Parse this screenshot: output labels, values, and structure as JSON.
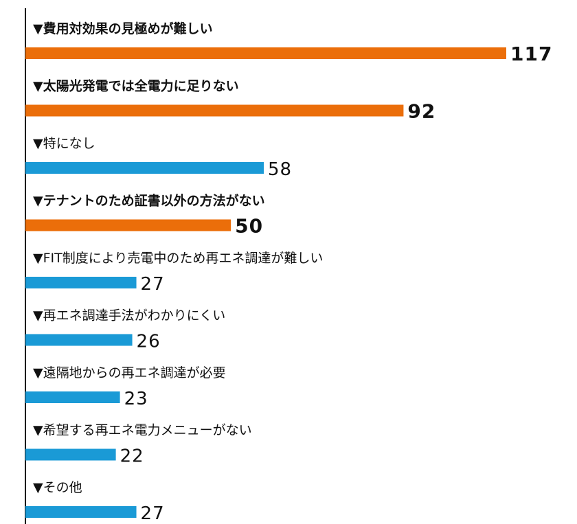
{
  "chart_data": {
    "type": "bar",
    "orientation": "horizontal",
    "categories": [
      "▼費用対効果の見極めが難しい",
      "▼太陽光発電では全電力に足りない",
      "▼特になし",
      "▼テナントのため証書以外の方法がない",
      "▼FIT制度により売電中のため再エネ調達が難しい",
      "▼再エネ調達手法がわかりにくい",
      "▼遠隔地からの再エネ調達が必要",
      "▼希望する再エネ電力メニューがない",
      "▼その他"
    ],
    "values": [
      117,
      92,
      58,
      50,
      27,
      26,
      23,
      22,
      27
    ],
    "value_labels": [
      "117",
      "92",
      "58",
      "50",
      "27",
      "26",
      "23",
      "22",
      "27"
    ],
    "highlighted": [
      true,
      true,
      false,
      true,
      false,
      false,
      false,
      false,
      false
    ],
    "title": "",
    "xlabel": "",
    "ylabel": "",
    "grid": false,
    "legend": "none",
    "colors": {
      "highlight": "#EB6E0A",
      "normal": "#1A9AD6",
      "axis": "#111111"
    }
  }
}
